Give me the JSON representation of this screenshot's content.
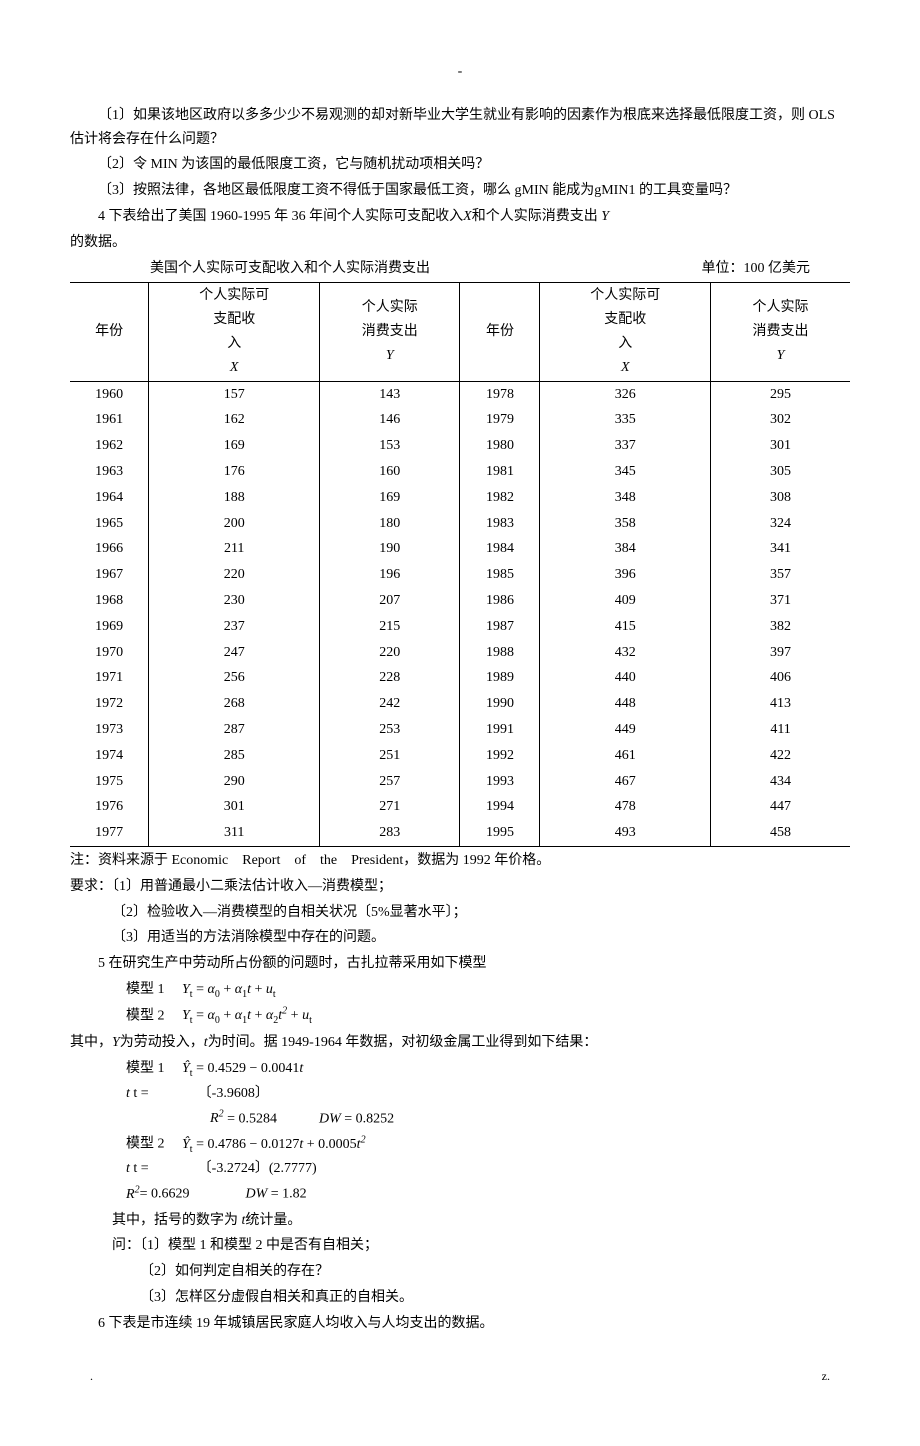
{
  "centerDash": "-",
  "p1": "〔1〕如果该地区政府以多多少少不易观测的却对新毕业大学生就业有影响的因素作为根底来选择最低限度工资，则 OLS 估计将会存在什么问题？",
  "p2": "〔2〕令 MIN 为该国的最低限度工资，它与随机扰动项相关吗？",
  "p3": "〔3〕按照法律，各地区最低限度工资不得低于国家最低工资，哪么 gMIN 能成为gMIN1 的工具变量吗？",
  "p4a": "4 下表给出了美国 1960-1995 年 36 年间个人实际可支配收入",
  "p4and": "和个人实际消费支出 ",
  "p4b": "的数据。",
  "tableTitleLeft": "美国个人实际可支配收入和个人实际消费支出",
  "tableTitleRight": "单位：100 亿美元",
  "headers": {
    "year": "年份",
    "incomeL1": "个人实际可",
    "incomeL2": "支配收",
    "incomeL3": "入",
    "incomeVar": "X",
    "consL1": "个人实际",
    "consL2": "消费支出",
    "consVar": "Y"
  },
  "rows": [
    [
      "1960",
      "157",
      "143",
      "1978",
      "326",
      "295"
    ],
    [
      "1961",
      "162",
      "146",
      "1979",
      "335",
      "302"
    ],
    [
      "1962",
      "169",
      "153",
      "1980",
      "337",
      "301"
    ],
    [
      "1963",
      "176",
      "160",
      "1981",
      "345",
      "305"
    ],
    [
      "1964",
      "188",
      "169",
      "1982",
      "348",
      "308"
    ],
    [
      "1965",
      "200",
      "180",
      "1983",
      "358",
      "324"
    ],
    [
      "1966",
      "211",
      "190",
      "1984",
      "384",
      "341"
    ],
    [
      "1967",
      "220",
      "196",
      "1985",
      "396",
      "357"
    ],
    [
      "1968",
      "230",
      "207",
      "1986",
      "409",
      "371"
    ],
    [
      "1969",
      "237",
      "215",
      "1987",
      "415",
      "382"
    ],
    [
      "1970",
      "247",
      "220",
      "1988",
      "432",
      "397"
    ],
    [
      "1971",
      "256",
      "228",
      "1989",
      "440",
      "406"
    ],
    [
      "1972",
      "268",
      "242",
      "1990",
      "448",
      "413"
    ],
    [
      "1973",
      "287",
      "253",
      "1991",
      "449",
      "411"
    ],
    [
      "1974",
      "285",
      "251",
      "1992",
      "461",
      "422"
    ],
    [
      "1975",
      "290",
      "257",
      "1993",
      "467",
      "434"
    ],
    [
      "1976",
      "301",
      "271",
      "1994",
      "478",
      "447"
    ],
    [
      "1977",
      "311",
      "283",
      "1995",
      "493",
      "458"
    ]
  ],
  "note": "注：资料来源于 Economic　Report　of　the　President，数据为 1992 年价格。",
  "req0": "要求：〔1〕用普通最小二乘法估计收入—消费模型；",
  "req2": "〔2〕检验收入—消费模型的自相关状况〔5%显著水平〕；",
  "req3": "〔3〕用适当的方法消除模型中存在的问题。",
  "p5": "5 在研究生产中劳动所占份额的问题时，古扎拉蒂采用如下模型",
  "model1label": "模型 1",
  "model2label": "模型 2",
  "model1eq": {
    "Y": "Y",
    "t": "t",
    "eq": " = ",
    "a0": "α",
    "s0": "0",
    "plus": " + ",
    "a1": "α",
    "s1": "1",
    "u": "u"
  },
  "model2eq": {
    "a2": "α",
    "s2": "2",
    "t2exp": "2"
  },
  "p5b_a": "其中，",
  "p5b_b": "为劳动投入，",
  "p5b_c": "为时间。据 1949-1964 年数据，对初级金属工业得到如下结果：",
  "res1": {
    "label": "模型 1",
    "eq": " = 0.4529 − 0.0041",
    "t": "t"
  },
  "res1t": "t =　　　　〔-3.9608〕",
  "res1r": {
    "r2lab": "R",
    "r2exp": "2",
    "r2": " = 0.5284",
    "dwlab": "DW",
    "dw": " = 0.8252"
  },
  "res2": {
    "label": "模型 2",
    "eq": " = 0.4786 − 0.0127",
    "t": "t",
    "plus": " + 0.0005",
    "t2": "t",
    "exp": "2"
  },
  "res2t": "t =　　　　〔-3.2724〕(2.7777)",
  "res2r": {
    "r2lab": "R",
    "r2exp": "2",
    "r2": "= 0.6629",
    "dwlab": "DW",
    "dw": " = 1.82"
  },
  "p5c_a": "其中，括号的数字为 ",
  "p5c_b": "统计量。",
  "q0": "问：〔1〕模型 1 和模型 2 中是否有自相关；",
  "q2": "〔2〕如何判定自相关的存在？",
  "q3": "〔3〕怎样区分虚假自相关和真正的自相关。",
  "p6": "6 下表是市连续 19 年城镇居民家庭人均收入与人均支出的数据。",
  "footL": ".",
  "footR": "z."
}
